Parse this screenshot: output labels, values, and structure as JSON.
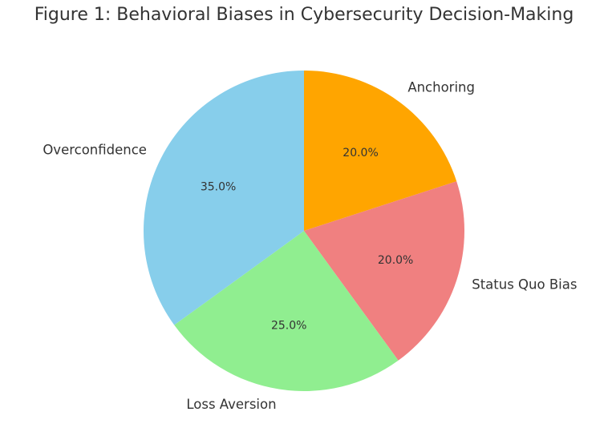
{
  "chart_data": {
    "type": "pie",
    "title": "Figure 1: Behavioral Biases in Cybersecurity Decision-Making",
    "slices": [
      {
        "label": "Anchoring",
        "value": 20.0,
        "pct_label": "20.0%",
        "color": "#FFA500"
      },
      {
        "label": "Status Quo Bias",
        "value": 20.0,
        "pct_label": "20.0%",
        "color": "#F08080"
      },
      {
        "label": "Loss Aversion",
        "value": 25.0,
        "pct_label": "25.0%",
        "color": "#90EE90"
      },
      {
        "label": "Overconfidence",
        "value": 35.0,
        "pct_label": "35.0%",
        "color": "#87CEEB"
      }
    ],
    "start": "top",
    "direction": "clockwise",
    "legend": "none"
  }
}
